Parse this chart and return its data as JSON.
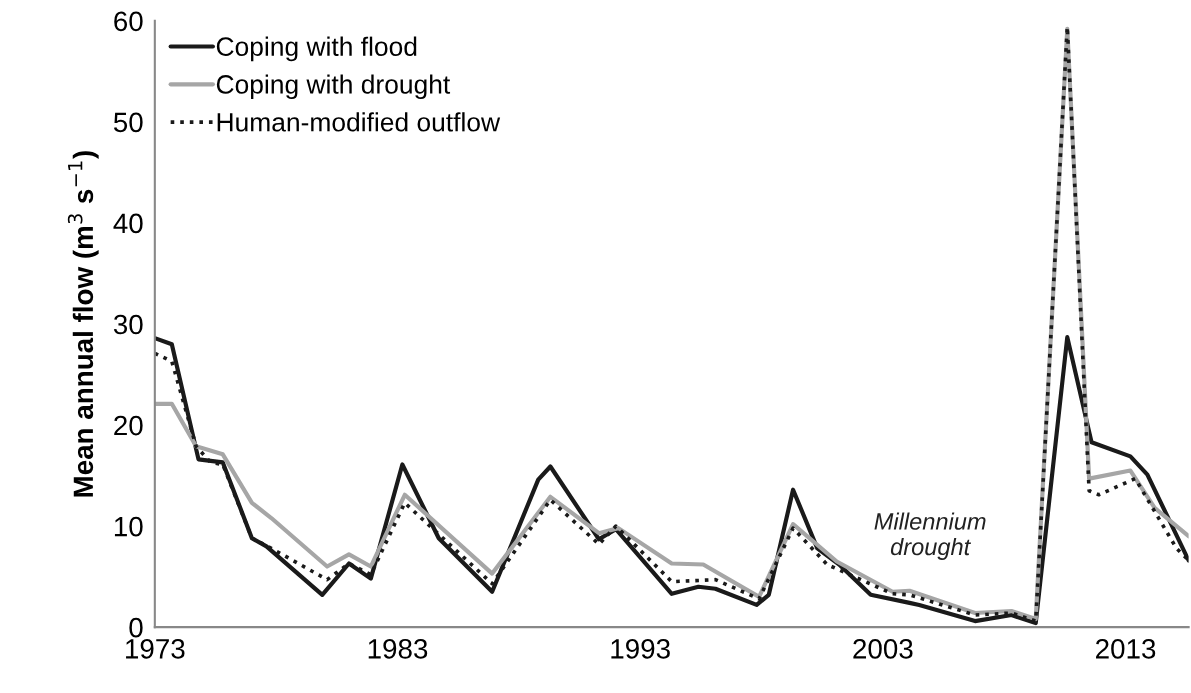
{
  "chart_data": {
    "type": "line",
    "ylabel": "Mean annual flow (m$^{3}$ s$^{−1}$)",
    "xlim": [
      1973,
      2015.6
    ],
    "xticks": [
      1973,
      1983,
      1993,
      2003,
      2013
    ],
    "ylim": [
      0,
      60
    ],
    "yticks": [
      0,
      10,
      20,
      30,
      40,
      50,
      60
    ],
    "grid": false,
    "legend": "top left",
    "marker": "none",
    "annotations": [
      "Millennium\ndrought"
    ],
    "series": [
      {
        "name": "Coping with flood",
        "color": "#1a1a1a",
        "line_style": "solid",
        "x": [
          1973.0,
          1973.7,
          1974.8,
          1975.8,
          1977.0,
          1977.6,
          1979.9,
          1981.0,
          1981.9,
          1983.2,
          1984.7,
          1986.9,
          1988.8,
          1989.3,
          1991.3,
          1992.0,
          1994.3,
          1995.4,
          1996.1,
          1997.8,
          1998.3,
          1999.3,
          2000.3,
          2001.2,
          2002.5,
          2004.1,
          2004.5,
          2006.8,
          2008.3,
          2009.3,
          2010.6,
          2011.6,
          2013.2,
          2013.9,
          2015.6
        ],
        "values": [
          28.6,
          28.0,
          16.6,
          16.3,
          8.8,
          8.0,
          3.2,
          6.3,
          4.8,
          16.1,
          8.8,
          3.5,
          14.6,
          15.9,
          8.7,
          9.7,
          3.3,
          4.0,
          3.8,
          2.2,
          3.2,
          13.6,
          7.8,
          6.2,
          3.2,
          2.4,
          2.2,
          0.6,
          1.2,
          0.4,
          28.7,
          18.3,
          16.9,
          15.1,
          6.6
        ]
      },
      {
        "name": "Coping with drought",
        "color": "#a6a6a6",
        "line_style": "solid",
        "x": [
          1973.0,
          1973.7,
          1974.7,
          1975.8,
          1977.0,
          1977.8,
          1980.1,
          1981.0,
          1981.9,
          1983.3,
          1986.9,
          1989.3,
          1991.3,
          1992.1,
          1994.3,
          1995.6,
          1997.9,
          1999.3,
          2001.1,
          2003.4,
          2004.1,
          2006.8,
          2008.3,
          2009.3,
          2010.6,
          2011.5,
          2013.2,
          2014.2,
          2015.6
        ],
        "values": [
          22.1,
          22.1,
          17.9,
          17.1,
          12.3,
          10.8,
          6.0,
          7.2,
          6.0,
          13.1,
          5.3,
          12.9,
          9.3,
          9.8,
          6.3,
          6.2,
          3.0,
          10.2,
          6.5,
          3.5,
          3.6,
          1.4,
          1.6,
          0.8,
          59.2,
          14.7,
          15.5,
          11.8,
          9.0
        ]
      },
      {
        "name": "Human-modified outflow",
        "color": "#1a1a1a",
        "line_style": "dotted",
        "x": [
          1973.0,
          1973.7,
          1974.7,
          1975.3,
          1975.8,
          1977.0,
          1977.8,
          1980.1,
          1981.0,
          1981.9,
          1983.3,
          1986.9,
          1989.3,
          1991.3,
          1992.0,
          1994.3,
          1996.1,
          1997.9,
          1999.3,
          2000.7,
          2003.4,
          2004.1,
          2006.8,
          2008.3,
          2009.3,
          2010.6,
          2011.5,
          2011.9,
          2013.4,
          2015.1,
          2015.6
        ],
        "values": [
          27.1,
          26.3,
          17.9,
          16.3,
          16.1,
          8.8,
          7.8,
          4.7,
          6.3,
          5.2,
          12.3,
          4.3,
          12.6,
          8.2,
          10.0,
          4.5,
          4.7,
          2.8,
          9.8,
          6.2,
          3.3,
          3.2,
          1.2,
          1.4,
          0.6,
          59.4,
          13.5,
          13.1,
          14.7,
          7.8,
          6.6
        ]
      }
    ]
  }
}
